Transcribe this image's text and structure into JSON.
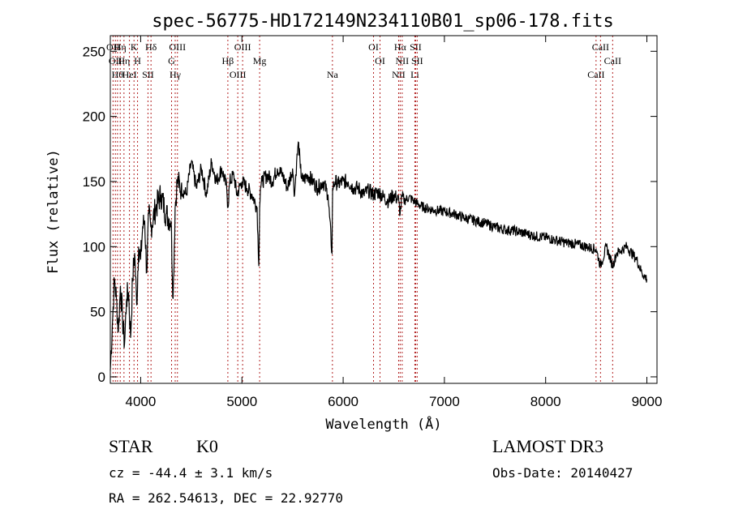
{
  "chart_data": {
    "type": "line",
    "title": "spec-56775-HD172149N234110B01_sp06-178.fits",
    "xlabel": "Wavelength (Å)",
    "ylabel": "Flux (relative)",
    "xlim": [
      3700,
      9100
    ],
    "ylim": [
      -5,
      262
    ],
    "xticks": [
      4000,
      5000,
      6000,
      7000,
      8000,
      9000
    ],
    "yticks": [
      0,
      50,
      100,
      150,
      200,
      250
    ],
    "series": [
      {
        "name": "flux",
        "x": [
          3700,
          3720,
          3740,
          3760,
          3780,
          3800,
          3820,
          3840,
          3860,
          3880,
          3900,
          3920,
          3940,
          3960,
          3980,
          4000,
          4020,
          4040,
          4060,
          4080,
          4100,
          4150,
          4200,
          4250,
          4300,
          4320,
          4340,
          4360,
          4400,
          4450,
          4500,
          4550,
          4600,
          4650,
          4700,
          4750,
          4800,
          4850,
          4861,
          4880,
          4920,
          4950,
          5000,
          5050,
          5100,
          5150,
          5167,
          5175,
          5183,
          5200,
          5250,
          5300,
          5350,
          5400,
          5450,
          5500,
          5520,
          5540,
          5560,
          5577,
          5600,
          5650,
          5700,
          5750,
          5800,
          5850,
          5890,
          5896,
          5920,
          5950,
          6000,
          6050,
          6100,
          6150,
          6200,
          6250,
          6300,
          6350,
          6400,
          6450,
          6500,
          6550,
          6563,
          6580,
          6600,
          6650,
          6700,
          6750,
          6800,
          6900,
          7000,
          7100,
          7200,
          7300,
          7400,
          7500,
          7600,
          7700,
          7800,
          7900,
          8000,
          8100,
          8200,
          8300,
          8400,
          8498,
          8542,
          8600,
          8662,
          8700,
          8800,
          8900,
          8950,
          9000
        ],
        "y": [
          5,
          40,
          75,
          60,
          35,
          70,
          45,
          25,
          60,
          65,
          30,
          75,
          95,
          55,
          100,
          90,
          115,
          120,
          80,
          125,
          115,
          130,
          140,
          125,
          120,
          60,
          130,
          150,
          145,
          140,
          165,
          145,
          160,
          140,
          165,
          150,
          160,
          145,
          130,
          150,
          155,
          140,
          150,
          145,
          140,
          130,
          85,
          130,
          145,
          150,
          155,
          150,
          160,
          155,
          145,
          160,
          140,
          165,
          180,
          160,
          150,
          155,
          150,
          145,
          150,
          140,
          95,
          145,
          150,
          148,
          150,
          150,
          145,
          145,
          140,
          143,
          140,
          142,
          138,
          135,
          140,
          135,
          125,
          138,
          135,
          138,
          135,
          132,
          130,
          128,
          127,
          125,
          122,
          120,
          118,
          115,
          113,
          112,
          110,
          108,
          107,
          105,
          103,
          102,
          100,
          98,
          85,
          100,
          85,
          95,
          100,
          90,
          80,
          75
        ]
      }
    ],
    "lines": [
      {
        "x": 3727,
        "label": "OII"
      },
      {
        "x": 3750,
        "label": "OII"
      },
      {
        "x": 3771,
        "label": "Hθ"
      },
      {
        "x": 3798,
        "label": "Hη"
      },
      {
        "x": 3835,
        "label": "Hη"
      },
      {
        "x": 3889,
        "label": "HeI"
      },
      {
        "x": 3934,
        "label": "K"
      },
      {
        "x": 3969,
        "label": "H"
      },
      {
        "x": 4072,
        "label": "SII"
      },
      {
        "x": 4102,
        "label": "Hδ"
      },
      {
        "x": 4305,
        "label": "G"
      },
      {
        "x": 4341,
        "label": "Hγ"
      },
      {
        "x": 4363,
        "label": "OIII"
      },
      {
        "x": 4861,
        "label": "Hβ"
      },
      {
        "x": 4959,
        "label": "OIII"
      },
      {
        "x": 5007,
        "label": "OIII"
      },
      {
        "x": 5175,
        "label": "Mg"
      },
      {
        "x": 5894,
        "label": "Na"
      },
      {
        "x": 6300,
        "label": "OI"
      },
      {
        "x": 6364,
        "label": "OI"
      },
      {
        "x": 6548,
        "label": "NII"
      },
      {
        "x": 6563,
        "label": "Hα"
      },
      {
        "x": 6583,
        "label": "NII"
      },
      {
        "x": 6708,
        "label": "Li"
      },
      {
        "x": 6716,
        "label": "SII"
      },
      {
        "x": 6731,
        "label": "SII"
      },
      {
        "x": 8498,
        "label": "CaII"
      },
      {
        "x": 8542,
        "label": "CaII"
      },
      {
        "x": 8662,
        "label": "CaII"
      }
    ]
  },
  "info": {
    "class": "STAR",
    "subclass": "K0",
    "survey": "LAMOST DR3",
    "cz": "cz = -44.4 ± 3.1 km/s",
    "obs_date": "Obs-Date: 20140427",
    "coords": "RA = 262.54613, DEC =  22.92770"
  }
}
